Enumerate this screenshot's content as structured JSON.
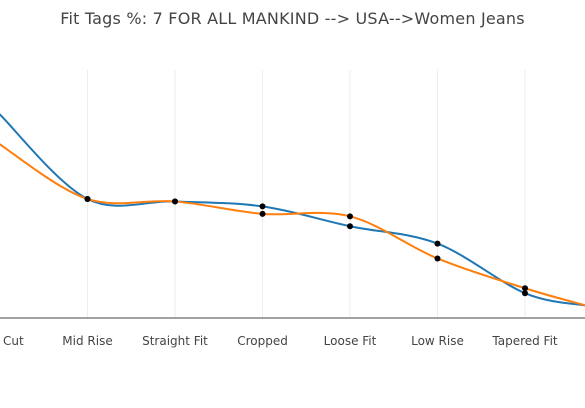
{
  "chart_data": {
    "type": "line",
    "title": "Fit Tags %: 7 FOR ALL MANKIND --> USA-->Women Jeans",
    "categories": [
      "Cut",
      "Mid Rise",
      "Straight Fit",
      "Cropped",
      "Loose Fit",
      "Low Rise",
      "Tapered Fit"
    ],
    "series": [
      {
        "color": "#1f77b4",
        "values": [
          4.1,
          2.4,
          2.35,
          2.25,
          1.85,
          1.5,
          0.5
        ]
      },
      {
        "color": "#ff7f0e",
        "values": [
          3.5,
          2.4,
          2.35,
          2.1,
          2.05,
          1.2,
          0.6
        ]
      }
    ],
    "x_edges": {
      "before_first": {
        "x": -0.1,
        "values": [
          4.3,
          3.7
        ]
      },
      "after_last": {
        "x": 6.7,
        "values": [
          0.25,
          0.25
        ]
      }
    },
    "ylim": [
      0,
      5
    ],
    "grid": "vertical",
    "legend": "none"
  }
}
